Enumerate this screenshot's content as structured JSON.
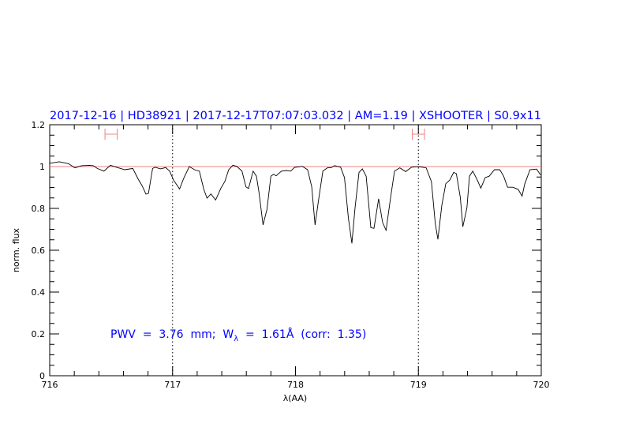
{
  "chart_data": {
    "type": "line",
    "title": "2017-12-16 | HD38921 | 2017-12-17T07:07:03.032 | AM=1.19 | XSHOOTER | S0.9x11",
    "xlabel": "λ(AA)",
    "ylabel": "norm. flux",
    "xlim": [
      716,
      720
    ],
    "ylim": [
      0,
      1.2
    ],
    "xticks": [
      "716",
      "717",
      "718",
      "719",
      "720"
    ],
    "yticks": [
      "0",
      "0.2",
      "0.4",
      "0.6",
      "0.8",
      "1",
      "1.2"
    ],
    "grid": false,
    "continuum_level": 1.0,
    "vertical_markers": [
      717,
      719
    ],
    "range_markers": [
      [
        716.45,
        716.55
      ],
      [
        718.95,
        719.05
      ]
    ],
    "annotation": {
      "prefix": "PWV  =  3.76  mm;  W",
      "sub": "λ",
      "suffix": "  =  1.61Å  (corr:  1.35)"
    },
    "colors": {
      "title": "#0000ff",
      "annotation": "#0000ff",
      "spectrum": "#000000",
      "continuum": "#f08080",
      "range_markers": "#f08080"
    },
    "series": [
      {
        "x": [
          716.002,
          716.077,
          716.152,
          716.205,
          716.259,
          716.323,
          716.355,
          716.387,
          716.441,
          716.494,
          716.558,
          716.612,
          716.676,
          716.719,
          716.751,
          716.783,
          716.804,
          716.837,
          716.858,
          716.901,
          716.944,
          716.976,
          717.008,
          717.057,
          717.093,
          717.136,
          717.179,
          717.218,
          717.254,
          717.28,
          717.312,
          717.35,
          717.393,
          717.425,
          717.457,
          717.49,
          717.522,
          717.565,
          717.597,
          717.618,
          717.655,
          717.682,
          717.703,
          717.736,
          717.768,
          717.8,
          717.822,
          717.843,
          717.886,
          717.928,
          717.96,
          717.992,
          718.031,
          718.056,
          718.099,
          718.132,
          718.159,
          718.185,
          718.223,
          718.26,
          718.288,
          718.318,
          718.367,
          718.399,
          718.431,
          718.459,
          718.485,
          718.517,
          718.544,
          718.575,
          718.613,
          718.639,
          718.677,
          718.709,
          718.737,
          718.774,
          718.806,
          718.849,
          718.896,
          718.945,
          718.999,
          719.063,
          719.106,
          719.138,
          719.159,
          719.191,
          719.223,
          719.255,
          719.287,
          719.309,
          719.341,
          719.362,
          719.395,
          719.416,
          719.443,
          719.48,
          719.508,
          719.544,
          719.576,
          719.619,
          719.662,
          719.694,
          719.726,
          719.769,
          719.812,
          719.844,
          719.865,
          719.908,
          719.962,
          719.994
        ],
        "y": [
          1.016,
          1.023,
          1.014,
          0.994,
          1.004,
          1.006,
          1.004,
          0.991,
          0.978,
          1.006,
          0.994,
          0.985,
          0.991,
          0.941,
          0.909,
          0.868,
          0.872,
          0.991,
          0.997,
          0.989,
          0.995,
          0.978,
          0.935,
          0.893,
          0.947,
          1.0,
          0.985,
          0.978,
          0.891,
          0.849,
          0.869,
          0.84,
          0.897,
          0.928,
          0.985,
          1.006,
          1.001,
          0.978,
          0.903,
          0.895,
          0.978,
          0.954,
          0.878,
          0.721,
          0.796,
          0.954,
          0.963,
          0.956,
          0.978,
          0.981,
          0.978,
          0.996,
          0.999,
          1.001,
          0.985,
          0.903,
          0.721,
          0.828,
          0.978,
          0.994,
          0.994,
          1.004,
          0.997,
          0.947,
          0.752,
          0.633,
          0.803,
          0.972,
          0.989,
          0.954,
          0.708,
          0.705,
          0.846,
          0.733,
          0.695,
          0.853,
          0.978,
          0.994,
          0.976,
          0.997,
          1.0,
          0.994,
          0.928,
          0.727,
          0.652,
          0.815,
          0.918,
          0.935,
          0.972,
          0.966,
          0.853,
          0.712,
          0.803,
          0.954,
          0.978,
          0.935,
          0.897,
          0.947,
          0.954,
          0.985,
          0.985,
          0.954,
          0.901,
          0.901,
          0.891,
          0.859,
          0.916,
          0.985,
          0.988,
          0.96
        ]
      }
    ]
  }
}
